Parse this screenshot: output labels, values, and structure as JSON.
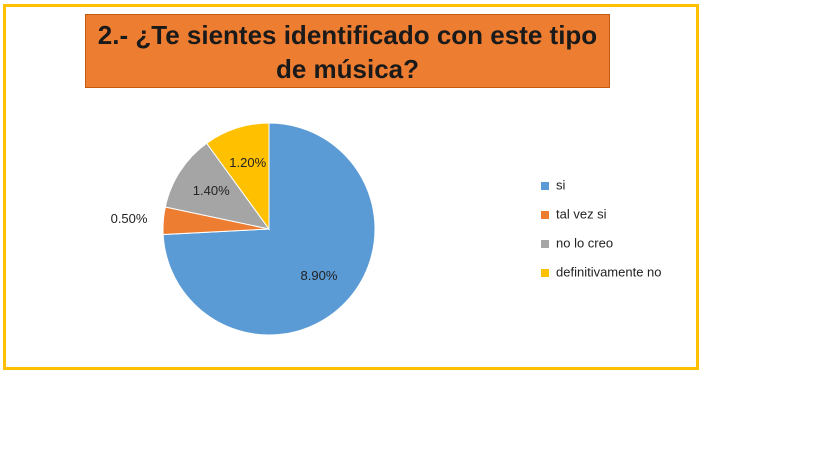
{
  "chart_data": {
    "type": "pie",
    "title": "2.- ¿Te sientes identificado con este tipo de música?",
    "categories": [
      "si",
      "tal vez si",
      "no lo creo",
      "definitivamente no"
    ],
    "values": [
      8.9,
      0.5,
      1.4,
      1.2
    ],
    "value_labels": [
      "8.90%",
      "0.50%",
      "1.40%",
      "1.20%"
    ],
    "colors": [
      "#5b9bd5",
      "#ed7d31",
      "#a5a5a5",
      "#ffc000"
    ],
    "legend": "right"
  }
}
